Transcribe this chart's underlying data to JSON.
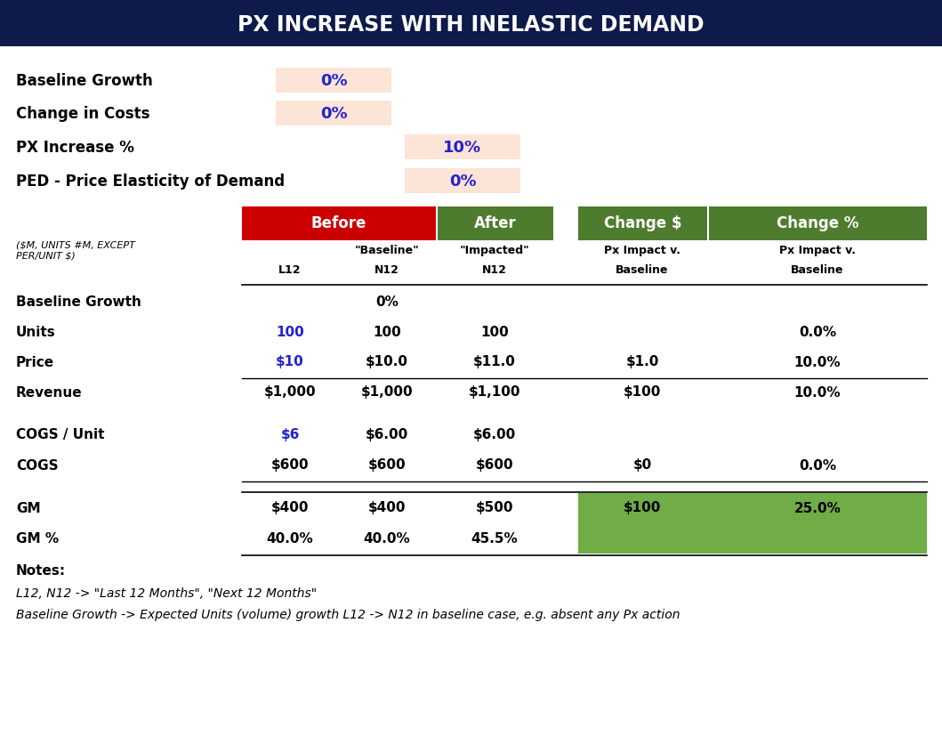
{
  "title": "PX INCREASE WITH INELASTIC DEMAND",
  "title_bg": "#0d1a4a",
  "title_fg": "#ffffff",
  "input_bg": "#fce4d6",
  "input_blue": "#2222cc",
  "red_bg": "#cc0000",
  "green_bg": "#4e7c2f",
  "bright_green_bg": "#70ad47",
  "table_rows": [
    {
      "label": "Baseline Growth",
      "l12": "",
      "n12_base": "0%",
      "n12_imp": "",
      "chg_dollar": "",
      "chg_pct": "",
      "l12_color": "#000000"
    },
    {
      "label": "Units",
      "l12": "100",
      "n12_base": "100",
      "n12_imp": "100",
      "chg_dollar": "",
      "chg_pct": "0.0%",
      "l12_color": "#2222cc"
    },
    {
      "label": "Price",
      "l12": "$10",
      "n12_base": "$10.0",
      "n12_imp": "$11.0",
      "chg_dollar": "$1.0",
      "chg_pct": "10.0%",
      "l12_color": "#2222cc",
      "line_below": true
    },
    {
      "label": "Revenue",
      "l12": "$1,000",
      "n12_base": "$1,000",
      "n12_imp": "$1,100",
      "chg_dollar": "$100",
      "chg_pct": "10.0%",
      "l12_color": "#000000"
    },
    {
      "label": "COGS / Unit",
      "l12": "$6",
      "n12_base": "$6.00",
      "n12_imp": "$6.00",
      "chg_dollar": "",
      "chg_pct": "",
      "l12_color": "#2222cc"
    },
    {
      "label": "COGS",
      "l12": "$600",
      "n12_base": "$600",
      "n12_imp": "$600",
      "chg_dollar": "$0",
      "chg_pct": "0.0%",
      "l12_color": "#000000",
      "line_below": true
    },
    {
      "label": "GM",
      "l12": "$400",
      "n12_base": "$400",
      "n12_imp": "$500",
      "chg_dollar": "$100",
      "chg_pct": "25.0%",
      "l12_color": "#000000",
      "highlight": true
    },
    {
      "label": "GM %",
      "l12": "40.0%",
      "n12_base": "40.0%",
      "n12_imp": "45.5%",
      "chg_dollar": "",
      "chg_pct": "",
      "l12_color": "#000000",
      "highlight": true
    }
  ],
  "notes_title": "Notes:",
  "note1": "L12, N12 -> \"Last 12 Months\", \"Next 12 Months\"",
  "note2": "Baseline Growth -> Expected Units (volume) growth L12 -> N12 in baseline case, e.g. absent any Px action"
}
